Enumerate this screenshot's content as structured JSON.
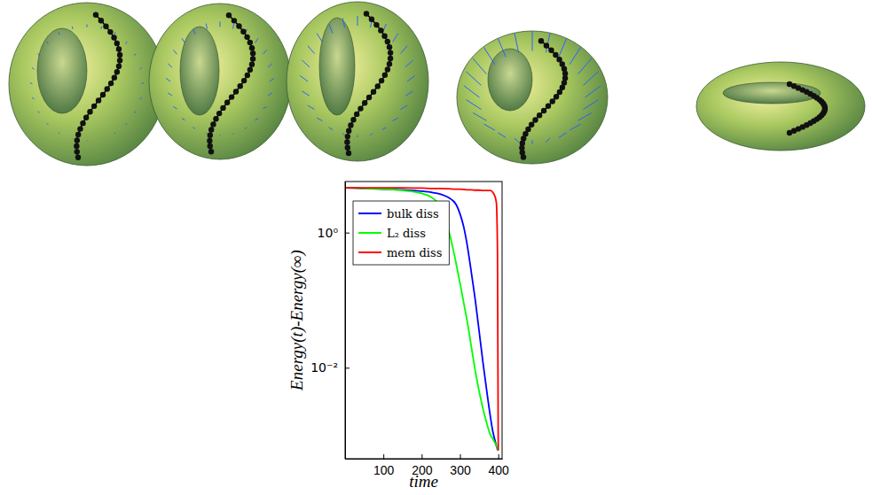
{
  "chart_data": {
    "type": "line",
    "x_label": "time",
    "y_label": "Energy(t)-Energy(∞)",
    "log": "y",
    "legend": "upper left",
    "grid": false,
    "xlim": [
      0,
      410
    ],
    "xticks": [
      100,
      200,
      300,
      400
    ],
    "ylim": [
      0.00045,
      5.7
    ],
    "yticks": [
      {
        "value": 0.01,
        "label": "10⁻²"
      },
      {
        "value": 1,
        "label": "10⁰"
      }
    ],
    "x": [
      1,
      50,
      100,
      150,
      200,
      230,
      250,
      270,
      290,
      300,
      310,
      320,
      330,
      340,
      350,
      360,
      370,
      380,
      385,
      390,
      395,
      398,
      400
    ],
    "series": [
      {
        "name": "bulk diss",
        "color": "#0000ff",
        "values": [
          4.6,
          4.5,
          4.4,
          4.3,
          4.1,
          3.9,
          3.7,
          3.3,
          2.6,
          1.9,
          1.2,
          0.6,
          0.25,
          0.1,
          0.035,
          0.012,
          0.0045,
          0.0018,
          0.0012,
          0.0009,
          0.0007,
          0.00062,
          0.0006
        ]
      },
      {
        "name": "L₂ diss",
        "color": "#00ff00",
        "values": [
          4.6,
          4.5,
          4.4,
          4.2,
          3.8,
          3.2,
          2.4,
          1.1,
          0.35,
          0.18,
          0.09,
          0.045,
          0.02,
          0.009,
          0.0045,
          0.0025,
          0.0015,
          0.001,
          0.0009,
          0.0008,
          0.0007,
          0.00065,
          0.0006
        ]
      },
      {
        "name": "mem diss",
        "color": "#ff0000",
        "values": [
          4.6,
          4.6,
          4.6,
          4.6,
          4.55,
          4.5,
          4.5,
          4.45,
          4.4,
          4.4,
          4.35,
          4.3,
          4.3,
          4.25,
          4.25,
          4.2,
          4.2,
          4.2,
          4.0,
          3.6,
          2.8,
          0.5,
          0.0006
        ]
      }
    ]
  }
}
